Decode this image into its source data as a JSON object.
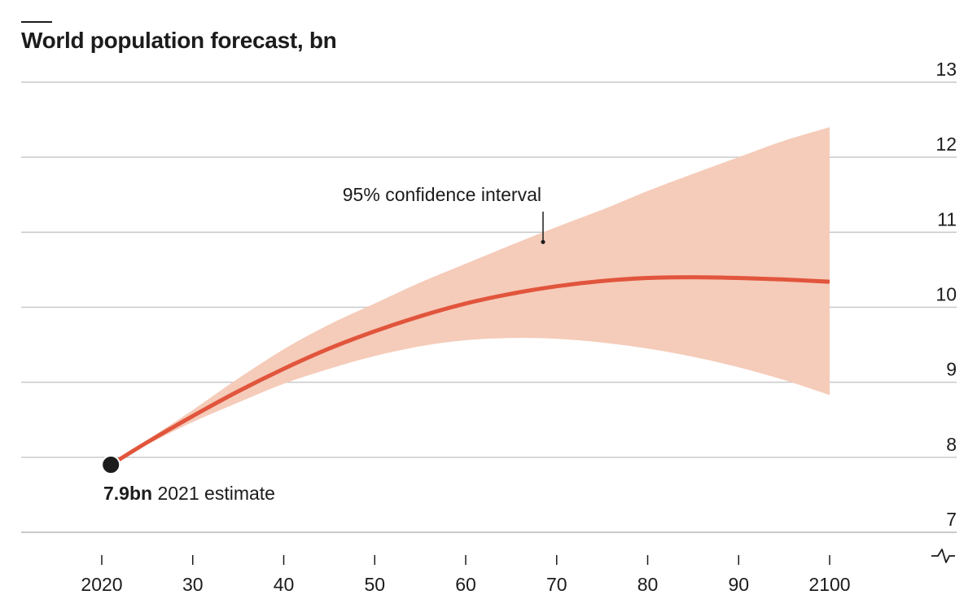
{
  "title": "World population forecast, bn",
  "colors": {
    "median_line": "#e1553c",
    "confidence_band": "#f5cbb9",
    "gridline": "#c9c9c9",
    "point": "#1c1c1c",
    "text": "#1c1c1c"
  },
  "icons": [
    "axis-break-icon"
  ],
  "chart_data": {
    "type": "area",
    "title": "World population forecast, bn",
    "xlabel": "",
    "ylabel": "",
    "xlim": [
      2020,
      2100
    ],
    "ylim": [
      7,
      13
    ],
    "grid": "horizontal",
    "y_axis_side": "right",
    "y_ticks": [
      7,
      8,
      9,
      10,
      11,
      12,
      13
    ],
    "y_tick_labels": [
      "7",
      "8",
      "9",
      "10",
      "11",
      "12",
      "13"
    ],
    "x_ticks": [
      2020,
      2030,
      2040,
      2050,
      2060,
      2070,
      2080,
      2090,
      2100
    ],
    "x_tick_labels": [
      "2020",
      "30",
      "40",
      "50",
      "60",
      "70",
      "80",
      "90",
      "2100"
    ],
    "series": [
      {
        "role": "median",
        "x": [
          2021,
          2025,
          2030,
          2035,
          2040,
          2045,
          2050,
          2055,
          2060,
          2065,
          2070,
          2075,
          2080,
          2085,
          2090,
          2095,
          2100
        ],
        "values": [
          7.9,
          8.2,
          8.55,
          8.88,
          9.18,
          9.45,
          9.68,
          9.88,
          10.05,
          10.18,
          10.28,
          10.35,
          10.39,
          10.4,
          10.39,
          10.37,
          10.34
        ]
      },
      {
        "role": "confidence_band",
        "name": "95% confidence interval",
        "x": [
          2021,
          2025,
          2030,
          2035,
          2040,
          2045,
          2050,
          2055,
          2060,
          2065,
          2070,
          2075,
          2080,
          2085,
          2090,
          2095,
          2100
        ],
        "upper": [
          7.9,
          8.23,
          8.63,
          9.05,
          9.44,
          9.77,
          10.05,
          10.33,
          10.58,
          10.83,
          11.07,
          11.3,
          11.55,
          11.78,
          12.0,
          12.22,
          12.4
        ],
        "lower": [
          7.9,
          8.17,
          8.47,
          8.73,
          8.98,
          9.18,
          9.35,
          9.48,
          9.56,
          9.59,
          9.58,
          9.53,
          9.45,
          9.34,
          9.2,
          9.03,
          8.83
        ]
      }
    ],
    "annotations": [
      {
        "id": "band_label",
        "text": "95% confidence interval",
        "x": 2068.5,
        "y": 10.87
      },
      {
        "id": "start_point",
        "x": 2021,
        "y": 7.9,
        "bold_text": "7.9bn",
        "text": "2021 estimate"
      }
    ]
  }
}
